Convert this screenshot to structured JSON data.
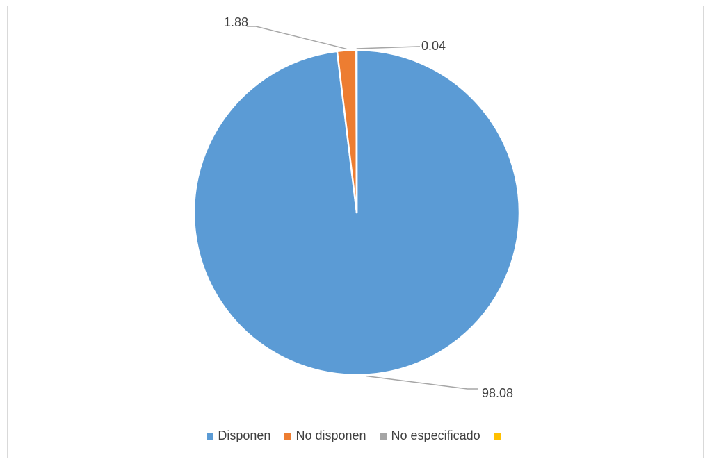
{
  "chart_data": {
    "type": "pie",
    "title": "",
    "slices": [
      {
        "label": "Disponen",
        "value": 98.08,
        "value_label": "98.08",
        "color": "#5B9BD5"
      },
      {
        "label": "No disponen",
        "value": 1.88,
        "value_label": "1.88",
        "color": "#ED7D31"
      },
      {
        "label": "No especificado",
        "value": 0.04,
        "value_label": "0.04",
        "color": "#A5A5A5"
      },
      {
        "label": "",
        "value": 0,
        "value_label": "",
        "color": "#FFC000"
      }
    ],
    "legend_position": "bottom"
  }
}
